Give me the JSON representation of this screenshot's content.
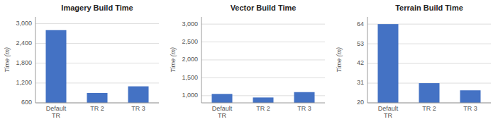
{
  "chart_data": [
    {
      "type": "bar",
      "title": "Imagery Build Time",
      "ylabel": "Time (m)",
      "categories": [
        "Default\nTR",
        "TR 2",
        "TR 3"
      ],
      "values": [
        2800,
        900,
        1100
      ],
      "color": "#4472c4",
      "ylim": [
        600,
        3200
      ],
      "yticks": [
        600,
        {
          "value": 1200,
          "label": "1,200"
        },
        {
          "value": 1800,
          "label": "1,800"
        },
        {
          "value": 2400,
          "label": "2,400"
        },
        {
          "value": 3000,
          "label": "3,000"
        }
      ],
      "grid": true
    },
    {
      "type": "bar",
      "title": "Vector Build Time",
      "ylabel": "Time (m)",
      "categories": [
        "Default\nTR",
        "TR 2",
        "TR 3"
      ],
      "values": [
        1050,
        950,
        1100
      ],
      "color": "#4472c4",
      "ylim": [
        800,
        3200
      ],
      "yticks": [
        {
          "value": 1000,
          "label": "1,000"
        },
        {
          "value": 1500,
          "label": "1,500"
        },
        {
          "value": 2000,
          "label": "2,000"
        },
        {
          "value": 2500,
          "label": "2,500"
        },
        {
          "value": 3000,
          "label": "3,000"
        }
      ],
      "grid": true
    },
    {
      "type": "bar",
      "title": "Terrain Build Time",
      "ylabel": "Time (m)",
      "categories": [
        "Default\nTR",
        "TR 2",
        "TR 3"
      ],
      "values": [
        64,
        31,
        27
      ],
      "color": "#4472c4",
      "ylim": [
        20,
        68
      ],
      "yticks": [
        20,
        31,
        42,
        53,
        64
      ],
      "grid": true
    }
  ]
}
